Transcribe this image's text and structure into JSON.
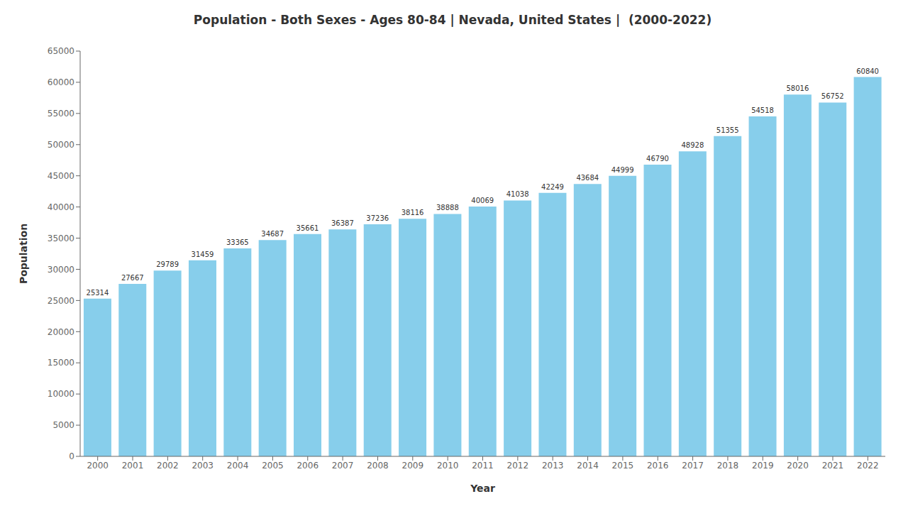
{
  "chart_data": {
    "type": "bar",
    "title": "Population - Both Sexes - Ages 80-84 | Nevada, United States |  (2000-2022)",
    "x_label": "Year",
    "y_label": "Population",
    "categories": [
      "2000",
      "2001",
      "2002",
      "2003",
      "2004",
      "2005",
      "2006",
      "2007",
      "2008",
      "2009",
      "2010",
      "2011",
      "2012",
      "2013",
      "2014",
      "2015",
      "2016",
      "2017",
      "2018",
      "2019",
      "2020",
      "2021",
      "2022"
    ],
    "values": [
      25314,
      27667,
      29789,
      31459,
      33365,
      34687,
      35661,
      36387,
      37236,
      38116,
      38888,
      40069,
      41038,
      42249,
      43684,
      44999,
      46790,
      48928,
      51355,
      54518,
      58016,
      56752,
      60840
    ],
    "color": "#87CEEB",
    "ylim": [
      0,
      65000
    ],
    "yticks": [
      0,
      5000,
      10000,
      15000,
      20000,
      25000,
      30000,
      35000,
      40000,
      45000,
      50000,
      55000,
      60000,
      65000
    ],
    "grid": false,
    "data_labels": true
  }
}
